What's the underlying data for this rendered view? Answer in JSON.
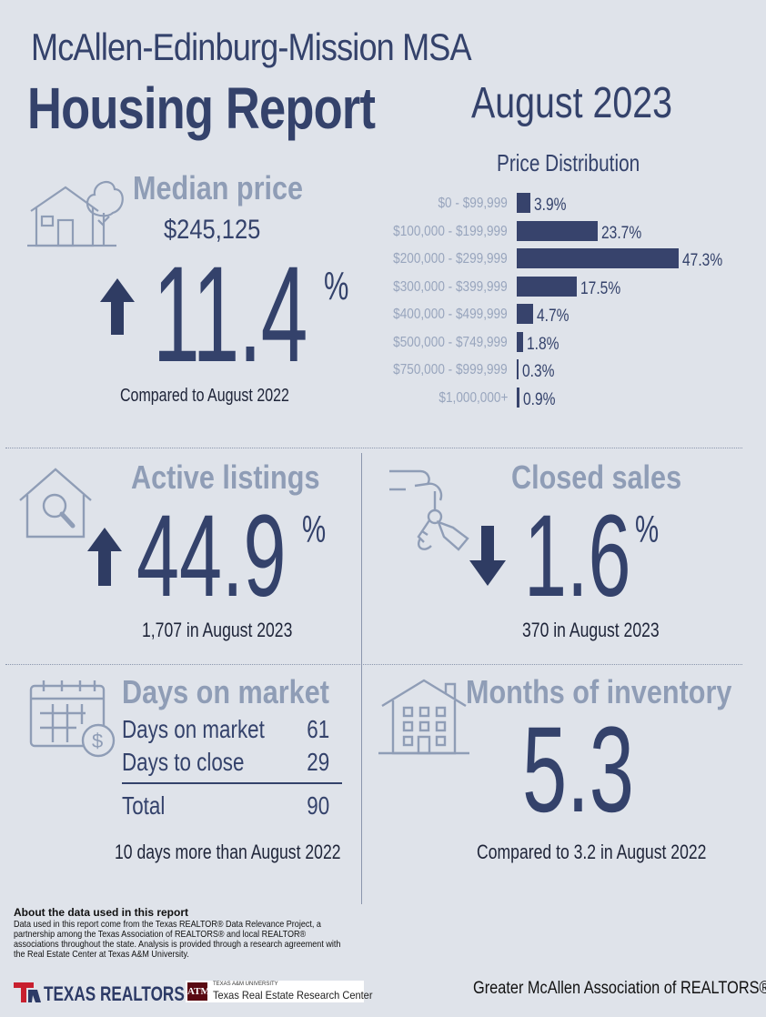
{
  "header": {
    "msa": "McAllen-Edinburg-Mission MSA",
    "title": "Housing Report",
    "month": "August 2023"
  },
  "median": {
    "label": "Median price",
    "value": "$245,125",
    "pct": "11.4",
    "pct_sign": "%",
    "direction": "up",
    "compare": "Compared to August 2022"
  },
  "distribution": {
    "title": "Price Distribution",
    "rows": [
      {
        "label": "$0 - $99,999",
        "value": "3.9%",
        "pct": 3.9
      },
      {
        "label": "$100,000 - $199,999",
        "value": "23.7%",
        "pct": 23.7
      },
      {
        "label": "$200,000 - $299,999",
        "value": "47.3%",
        "pct": 47.3
      },
      {
        "label": "$300,000 - $399,999",
        "value": "17.5%",
        "pct": 17.5
      },
      {
        "label": "$400,000 - $499,999",
        "value": "4.7%",
        "pct": 4.7
      },
      {
        "label": "$500,000 - $749,999",
        "value": "1.8%",
        "pct": 1.8
      },
      {
        "label": "$750,000 - $999,999",
        "value": "0.3%",
        "pct": 0.3
      },
      {
        "label": "$1,000,000+",
        "value": "0.9%",
        "pct": 0.9
      }
    ]
  },
  "active": {
    "label": "Active listings",
    "pct": "44.9",
    "pct_sign": "%",
    "direction": "up",
    "sub": "1,707 in August 2023"
  },
  "closed": {
    "label": "Closed sales",
    "pct": "1.6",
    "pct_sign": "%",
    "direction": "down",
    "sub": "370 in August 2023"
  },
  "dom": {
    "label": "Days on market",
    "rows": [
      {
        "k": "Days on market",
        "v": "61"
      },
      {
        "k": "Days to close",
        "v": "29"
      }
    ],
    "total": {
      "k": "Total",
      "v": "90"
    },
    "compare": "10 days more than August 2022"
  },
  "moi": {
    "label": "Months of inventory",
    "value": "5.3",
    "compare": "Compared to 3.2 in August 2022"
  },
  "about": {
    "title": "About the data used in this report",
    "body": "Data used in this report come from the Texas REALTOR® Data Relevance Project, a partnership among the Texas Association of REALTORS® and local REALTOR® associations throughout the state. Analysis is provided through a research agreement with the Real Estate Center at Texas A&M University."
  },
  "footer": {
    "texas_realtors": "TEXAS REALTORS",
    "tamu_small": "TEXAS A&M UNIVERSITY",
    "tamu_big": "Texas Real Estate Research Center",
    "tamu_mark": "ATM",
    "association": "Greater McAllen Association of REALTORS®"
  },
  "colors": {
    "background": "#dfe3ea",
    "navy": "#34426b",
    "muted": "#8f9db6"
  },
  "chart_data": {
    "type": "bar",
    "title": "Price Distribution",
    "categories": [
      "$0 - $99,999",
      "$100,000 - $199,999",
      "$200,000 - $299,999",
      "$300,000 - $399,999",
      "$400,000 - $499,999",
      "$500,000 - $749,999",
      "$750,000 - $999,999",
      "$1,000,000+"
    ],
    "values": [
      3.9,
      23.7,
      47.3,
      17.5,
      4.7,
      1.8,
      0.3,
      0.9
    ],
    "orientation": "horizontal",
    "xlim": [
      0,
      47.3
    ]
  }
}
